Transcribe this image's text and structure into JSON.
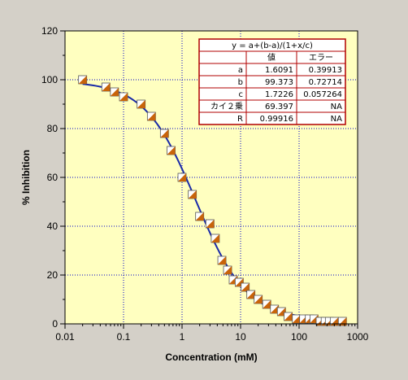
{
  "chart_data": {
    "type": "scatter",
    "xlabel": "Concentration (mM)",
    "ylabel": "% Inhibition",
    "xscale": "log",
    "xlim": [
      0.01,
      1000
    ],
    "ylim": [
      0,
      120
    ],
    "x_ticks": [
      "0.01",
      "0.1",
      "1",
      "10",
      "100",
      "1000"
    ],
    "y_ticks": [
      "0",
      "20",
      "40",
      "60",
      "80",
      "100",
      "120"
    ],
    "grid": true,
    "colors": {
      "background": "#d4d0c8",
      "plot_area": "#ffffc0",
      "grid": "#0000cc",
      "fit_line": "#1a2aa8",
      "marker_fill": "#c8640a",
      "marker_light": "#ffffff",
      "table_border": "#b00000",
      "table_bg": "#ffffff"
    },
    "series": [
      {
        "points": [
          [
            0.02,
            100
          ],
          [
            0.05,
            97
          ],
          [
            0.07,
            95
          ],
          [
            0.1,
            93
          ],
          [
            0.2,
            90
          ],
          [
            0.3,
            85
          ],
          [
            0.5,
            78
          ],
          [
            0.65,
            71
          ],
          [
            1.0,
            60
          ],
          [
            1.5,
            53
          ],
          [
            2.0,
            44
          ],
          [
            3.0,
            41
          ],
          [
            3.7,
            35
          ],
          [
            4.8,
            26
          ],
          [
            6.0,
            22
          ],
          [
            7.5,
            18
          ],
          [
            9.5,
            17
          ],
          [
            12,
            15
          ],
          [
            15,
            12
          ],
          [
            20,
            10
          ],
          [
            28,
            8
          ],
          [
            38,
            6
          ],
          [
            50,
            5
          ],
          [
            65,
            3
          ],
          [
            90,
            2
          ],
          [
            120,
            2
          ],
          [
            150,
            2
          ],
          [
            180,
            2
          ],
          [
            230,
            1
          ],
          [
            280,
            1
          ],
          [
            330,
            1
          ],
          [
            400,
            1
          ],
          [
            550,
            1
          ]
        ]
      }
    ],
    "fit_table": {
      "title": "y = a+(b-a)/(1+x/c)",
      "headers": [
        "",
        "値",
        "エラー"
      ],
      "rows": [
        [
          "a",
          "1.6091",
          "0.39913"
        ],
        [
          "b",
          "99.373",
          "0.72714"
        ],
        [
          "c",
          "1.7226",
          "0.057264"
        ],
        [
          "カイ２乗",
          "69.397",
          "NA"
        ],
        [
          "R",
          "0.99916",
          "NA"
        ]
      ]
    }
  }
}
